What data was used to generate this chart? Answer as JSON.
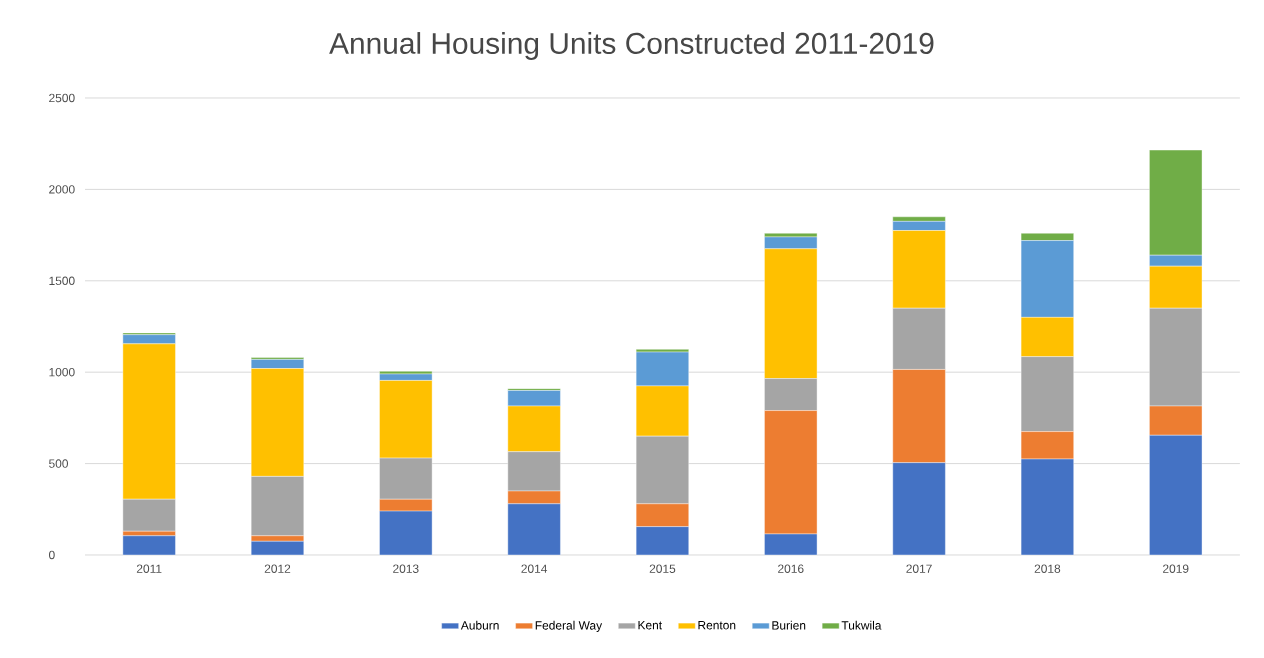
{
  "chart_data": {
    "type": "bar",
    "stacked": true,
    "title": "Annual Housing Units Constructed 2011-2019",
    "categories": [
      "2011",
      "2012",
      "2013",
      "2014",
      "2015",
      "2016",
      "2017",
      "2018",
      "2019"
    ],
    "series": [
      {
        "name": "Auburn",
        "color": "#4472c4",
        "values": [
          105,
          75,
          240,
          280,
          155,
          115,
          505,
          525,
          655
        ]
      },
      {
        "name": "Federal Way",
        "color": "#ed7d31",
        "values": [
          25,
          30,
          65,
          70,
          125,
          675,
          510,
          150,
          160
        ]
      },
      {
        "name": "Kent",
        "color": "#a5a5a5",
        "values": [
          175,
          325,
          225,
          215,
          370,
          175,
          335,
          410,
          535
        ]
      },
      {
        "name": "Renton",
        "color": "#ffc000",
        "values": [
          850,
          590,
          425,
          250,
          275,
          710,
          425,
          215,
          230
        ]
      },
      {
        "name": "Burien",
        "color": "#5b9bd5",
        "values": [
          50,
          50,
          35,
          85,
          185,
          65,
          50,
          420,
          60
        ]
      },
      {
        "name": "Tukwila",
        "color": "#70ad47",
        "values": [
          10,
          10,
          15,
          10,
          15,
          20,
          25,
          40,
          575
        ]
      }
    ],
    "ylim": [
      0,
      2500
    ],
    "yticks": [
      0,
      500,
      1000,
      1500,
      2000,
      2500
    ],
    "grid": "y",
    "legend": "bottom"
  }
}
